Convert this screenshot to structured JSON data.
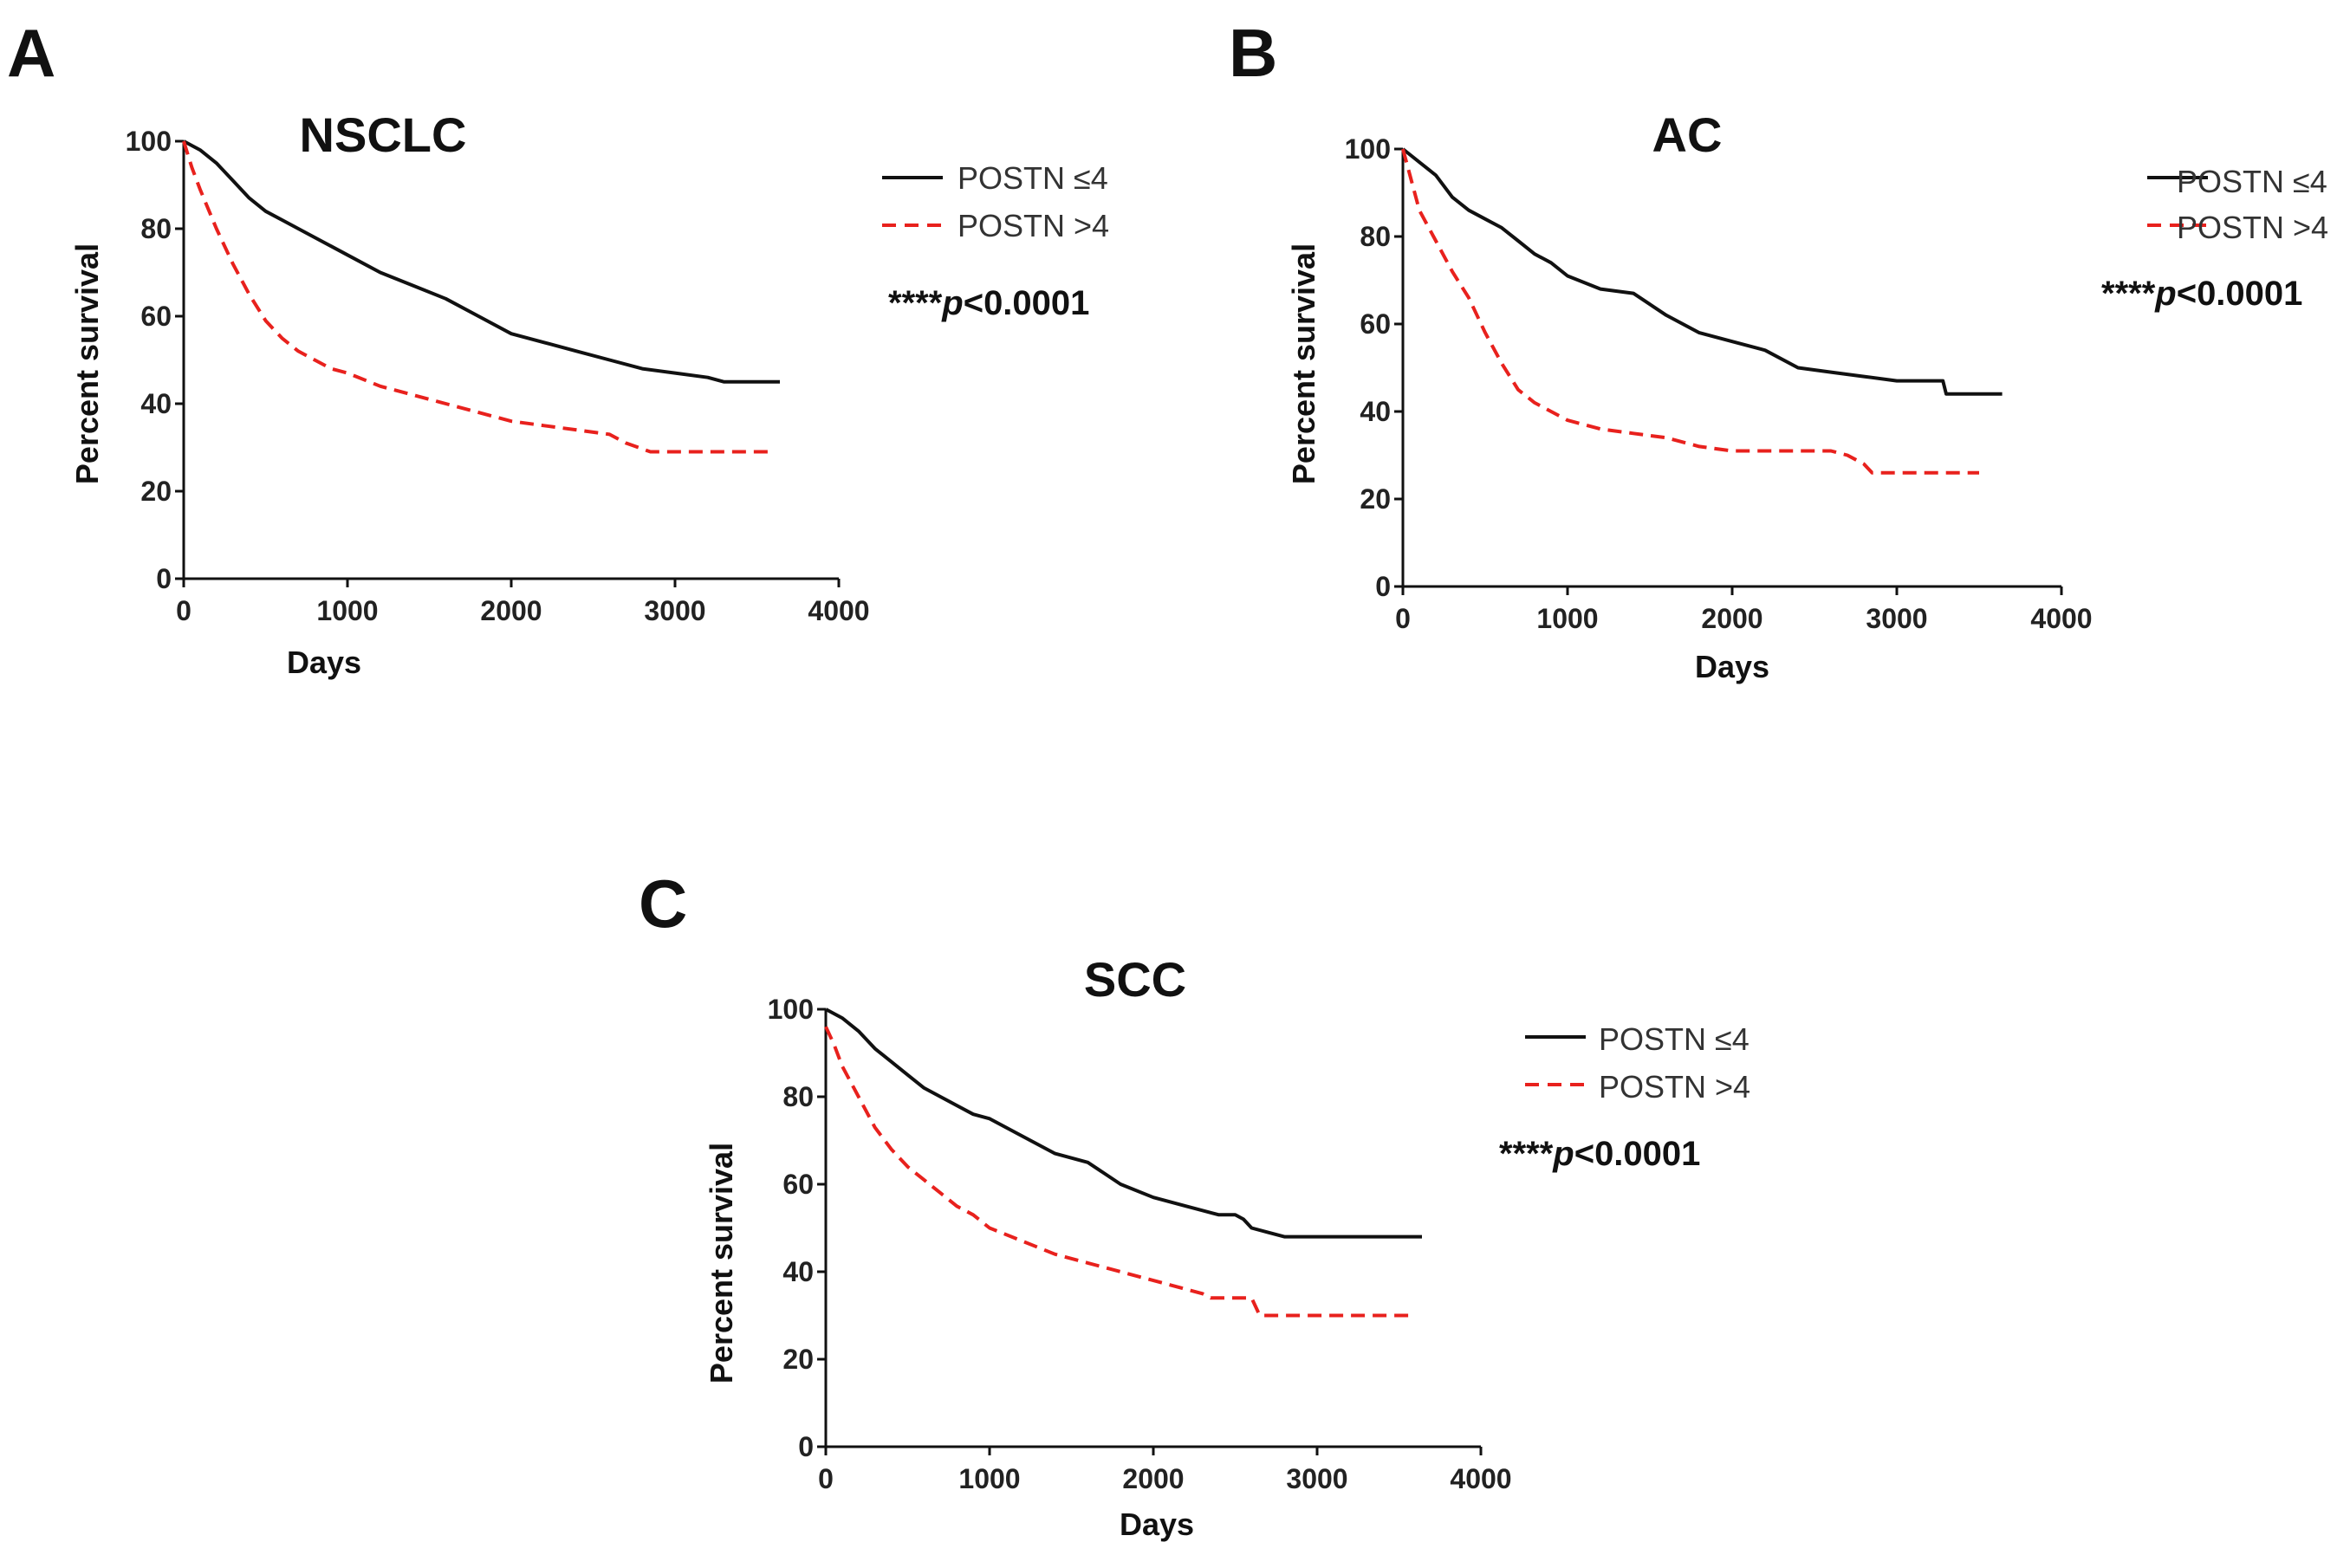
{
  "panels": [
    {
      "letter": "A",
      "chart_title": "NSCLC",
      "xlabel": "Days",
      "ylabel": "Percent survival",
      "legend": [
        "POSTN ≤4",
        "POSTN >4"
      ],
      "pvalue_stars": "****",
      "pvalue_p": "p",
      "pvalue_rest": "<0.0001"
    },
    {
      "letter": "B",
      "chart_title": "AC",
      "xlabel": "Days",
      "ylabel": "Percent survival",
      "legend": [
        "POSTN ≤4",
        "POSTN >4"
      ],
      "pvalue_stars": "****",
      "pvalue_p": "p",
      "pvalue_rest": "<0.0001"
    },
    {
      "letter": "C",
      "chart_title": "SCC",
      "xlabel": "Days",
      "ylabel": "Percent survival",
      "legend": [
        "POSTN ≤4",
        "POSTN >4"
      ],
      "pvalue_stars": "****",
      "pvalue_p": "p",
      "pvalue_rest": "<0.0001"
    }
  ],
  "chart_data": [
    {
      "type": "line",
      "subtype": "kaplan-meier survival curve",
      "title": "NSCLC",
      "xlabel": "Days",
      "ylabel": "Percent survival",
      "xlim": [
        0,
        4000
      ],
      "ylim": [
        0,
        100
      ],
      "xticks": [
        0,
        1000,
        2000,
        3000,
        4000
      ],
      "yticks": [
        0,
        20,
        40,
        60,
        80,
        100
      ],
      "annotation": "****p<0.0001",
      "series": [
        {
          "name": "POSTN ≤4",
          "color": "#111111",
          "style": "solid",
          "x": [
            0,
            100,
            200,
            300,
            400,
            500,
            600,
            700,
            800,
            900,
            1000,
            1200,
            1400,
            1600,
            1800,
            2000,
            2200,
            2400,
            2600,
            2800,
            3000,
            3200,
            3300,
            3640
          ],
          "y": [
            100,
            98,
            95,
            91,
            87,
            84,
            82,
            80,
            78,
            76,
            74,
            70,
            67,
            64,
            60,
            56,
            54,
            52,
            50,
            48,
            47,
            46,
            45,
            45
          ]
        },
        {
          "name": "POSTN >4",
          "color": "#e8211d",
          "style": "dashed",
          "x": [
            0,
            50,
            100,
            200,
            300,
            400,
            500,
            600,
            700,
            800,
            900,
            1000,
            1200,
            1400,
            1600,
            1800,
            2000,
            2200,
            2400,
            2600,
            2700,
            2850,
            3000,
            3600
          ],
          "y": [
            100,
            94,
            89,
            80,
            72,
            65,
            59,
            55,
            52,
            50,
            48,
            47,
            44,
            42,
            40,
            38,
            36,
            35,
            34,
            33,
            31,
            29,
            29,
            29
          ]
        }
      ]
    },
    {
      "type": "line",
      "subtype": "kaplan-meier survival curve",
      "title": "AC",
      "xlabel": "Days",
      "ylabel": "Percent survival",
      "xlim": [
        0,
        4000
      ],
      "ylim": [
        0,
        100
      ],
      "xticks": [
        0,
        1000,
        2000,
        3000,
        4000
      ],
      "yticks": [
        0,
        20,
        40,
        60,
        80,
        100
      ],
      "annotation": "****p<0.0001",
      "series": [
        {
          "name": "POSTN ≤4",
          "color": "#111111",
          "style": "solid",
          "x": [
            0,
            100,
            200,
            300,
            400,
            500,
            600,
            700,
            800,
            900,
            1000,
            1200,
            1400,
            1600,
            1800,
            2000,
            2200,
            2400,
            2600,
            2800,
            3000,
            3280,
            3300,
            3640
          ],
          "y": [
            100,
            97,
            94,
            89,
            86,
            84,
            82,
            79,
            76,
            74,
            71,
            68,
            67,
            62,
            58,
            56,
            54,
            50,
            49,
            48,
            47,
            47,
            44,
            44
          ]
        },
        {
          "name": "POSTN >4",
          "color": "#e8211d",
          "style": "dashed",
          "x": [
            0,
            50,
            100,
            200,
            300,
            400,
            500,
            600,
            700,
            800,
            900,
            1000,
            1200,
            1400,
            1600,
            1800,
            2000,
            2200,
            2400,
            2600,
            2700,
            2800,
            2850,
            3500
          ],
          "y": [
            100,
            93,
            86,
            79,
            72,
            66,
            58,
            51,
            45,
            42,
            40,
            38,
            36,
            35,
            34,
            32,
            31,
            31,
            31,
            31,
            30,
            28,
            26,
            26
          ]
        }
      ]
    },
    {
      "type": "line",
      "subtype": "kaplan-meier survival curve",
      "title": "SCC",
      "xlabel": "Days",
      "ylabel": "Percent survival",
      "xlim": [
        0,
        4000
      ],
      "ylim": [
        0,
        100
      ],
      "xticks": [
        0,
        1000,
        2000,
        3000,
        4000
      ],
      "yticks": [
        0,
        20,
        40,
        60,
        80,
        100
      ],
      "annotation": "****p<0.0001",
      "series": [
        {
          "name": "POSTN ≤4",
          "color": "#111111",
          "style": "solid",
          "x": [
            0,
            100,
            200,
            300,
            400,
            500,
            600,
            700,
            800,
            900,
            1000,
            1200,
            1400,
            1600,
            1800,
            2000,
            2200,
            2400,
            2500,
            2550,
            2600,
            2700,
            2800,
            3640
          ],
          "y": [
            100,
            98,
            95,
            91,
            88,
            85,
            82,
            80,
            78,
            76,
            75,
            71,
            67,
            65,
            60,
            57,
            55,
            53,
            53,
            52,
            50,
            49,
            48,
            48
          ]
        },
        {
          "name": "POSTN >4",
          "color": "#e8211d",
          "style": "dashed",
          "x": [
            0,
            50,
            100,
            200,
            300,
            400,
            500,
            600,
            700,
            800,
            900,
            1000,
            1200,
            1400,
            1600,
            1800,
            2000,
            2200,
            2300,
            2350,
            2500,
            2600,
            2650,
            3600
          ],
          "y": [
            96,
            92,
            87,
            80,
            73,
            68,
            64,
            61,
            58,
            55,
            53,
            50,
            47,
            44,
            42,
            40,
            38,
            36,
            35,
            34,
            34,
            34,
            30,
            30
          ]
        }
      ]
    }
  ]
}
